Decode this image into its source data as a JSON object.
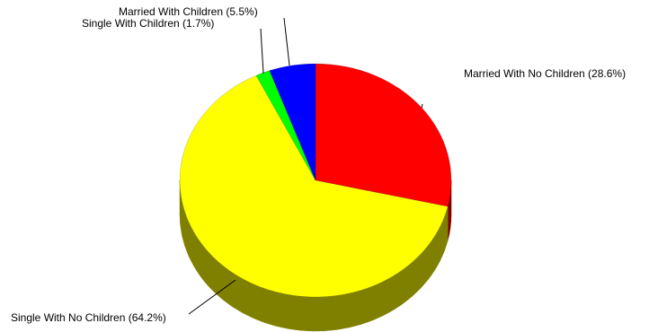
{
  "chart_data": {
    "type": "pie",
    "style": "3d",
    "slices": [
      {
        "label": "Married With No Children",
        "value": 28.6,
        "display": "Married With No Children (28.6%)",
        "color": "#ff0000",
        "side_color": "#800000"
      },
      {
        "label": "Single With No Children",
        "value": 64.2,
        "display": "Single With No Children (64.2%)",
        "color": "#ffff00",
        "side_color": "#808000"
      },
      {
        "label": "Single With Children",
        "value": 1.7,
        "display": "Single With Children (1.7%)",
        "color": "#00ff00",
        "side_color": "#008000"
      },
      {
        "label": "Married With Children",
        "value": 5.5,
        "display": "Married With Children (5.5%)",
        "color": "#0000ff",
        "side_color": "#000080"
      }
    ],
    "start_angle_deg": 0,
    "direction": "clockwise",
    "legend": "none"
  }
}
